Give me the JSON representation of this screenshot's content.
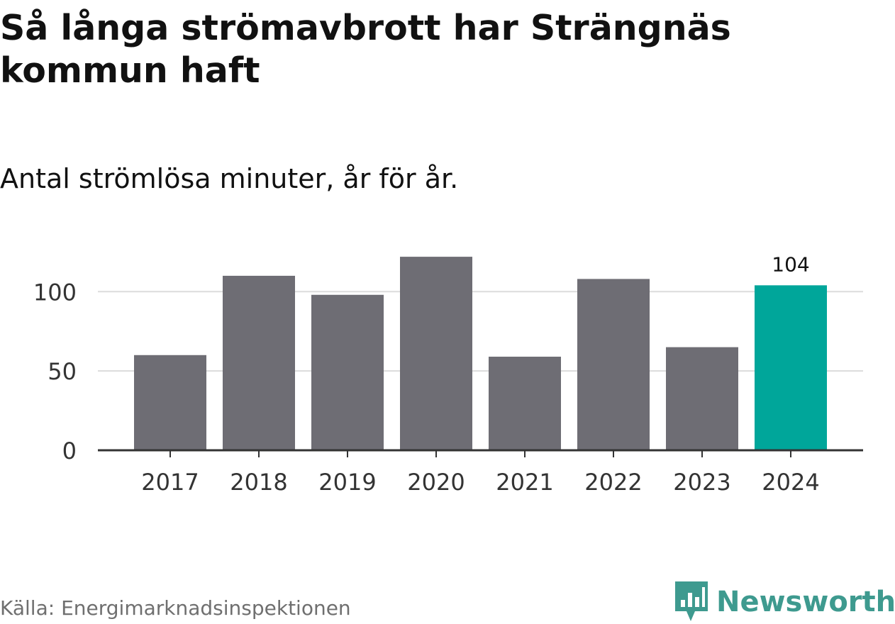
{
  "title": "Så långa strömavbrott har Strängnäs kommun haft",
  "subtitle": "Antal strömlösa minuter, år för år.",
  "source": "Källa: Energimarknadsinspektionen",
  "brand": {
    "name": "Newsworthy",
    "icon": "newsworthy-logo-icon"
  },
  "colors": {
    "bar": "#6e6d74",
    "highlight": "#00a69a",
    "grid": "#dcdcdc",
    "axis": "#333333",
    "brand": "#3e9a8f"
  },
  "chart_data": {
    "type": "bar",
    "title": "Så långa strömavbrott har Strängnäs kommun haft",
    "subtitle": "Antal strömlösa minuter, år för år.",
    "xlabel": "",
    "ylabel": "",
    "categories": [
      "2017",
      "2018",
      "2019",
      "2020",
      "2021",
      "2022",
      "2023",
      "2024"
    ],
    "values": [
      60,
      110,
      98,
      122,
      59,
      108,
      65,
      104
    ],
    "highlight_index": 7,
    "data_labels": [
      {
        "index": 7,
        "text": "104"
      }
    ],
    "yticks": [
      0,
      50,
      100
    ],
    "ytick_labels": [
      "0",
      "50",
      "100"
    ],
    "ylim": [
      0,
      122
    ],
    "grid": true
  }
}
